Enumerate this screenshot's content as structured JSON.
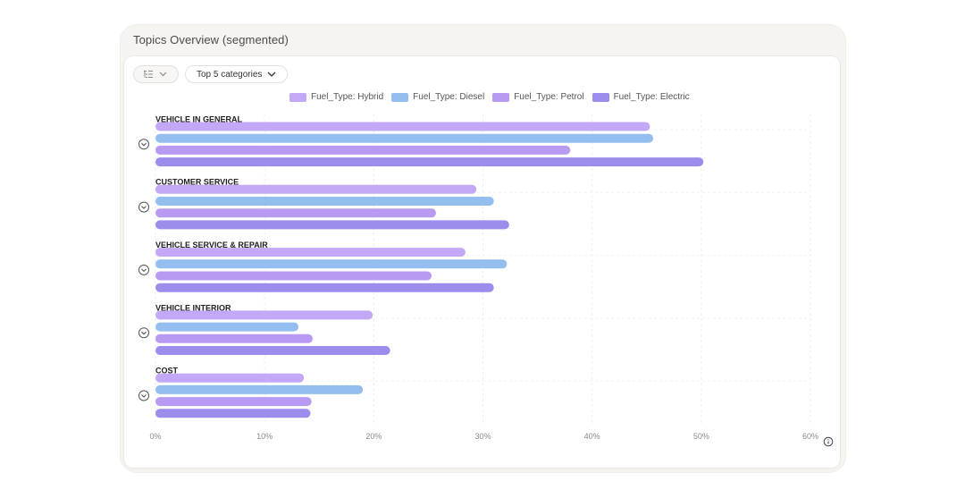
{
  "card": {
    "title": "Topics Overview (segmented)"
  },
  "toolbar": {
    "view_icon": "list-tree-icon",
    "filter_label": "Top 5 categories"
  },
  "colors": {
    "Hybrid": "#c3a8f7",
    "Diesel": "#94bdf0",
    "Petrol": "#b89af3",
    "Electric": "#9c8cec"
  },
  "chart_data": {
    "type": "bar",
    "orientation": "horizontal",
    "categories": [
      "VEHICLE IN GENERAL",
      "CUSTOMER SERVICE",
      "VEHICLE SERVICE & REPAIR",
      "VEHICLE INTERIOR",
      "COST"
    ],
    "series": [
      {
        "name": "Fuel_Type: Hybrid",
        "values": [
          45.3,
          29.4,
          28.4,
          19.9,
          13.6
        ]
      },
      {
        "name": "Fuel_Type: Diesel",
        "values": [
          45.6,
          31.0,
          32.2,
          13.1,
          19.0
        ]
      },
      {
        "name": "Fuel_Type: Petrol",
        "values": [
          38.0,
          25.7,
          25.3,
          14.4,
          14.3
        ]
      },
      {
        "name": "Fuel_Type: Electric",
        "values": [
          50.2,
          32.4,
          31.0,
          21.5,
          14.2
        ]
      }
    ],
    "xlim": [
      0,
      60
    ],
    "ticks": [
      "0%",
      "10%",
      "20%",
      "30%",
      "40%",
      "50%",
      "60%"
    ],
    "legend_position": "top",
    "grid": true
  }
}
